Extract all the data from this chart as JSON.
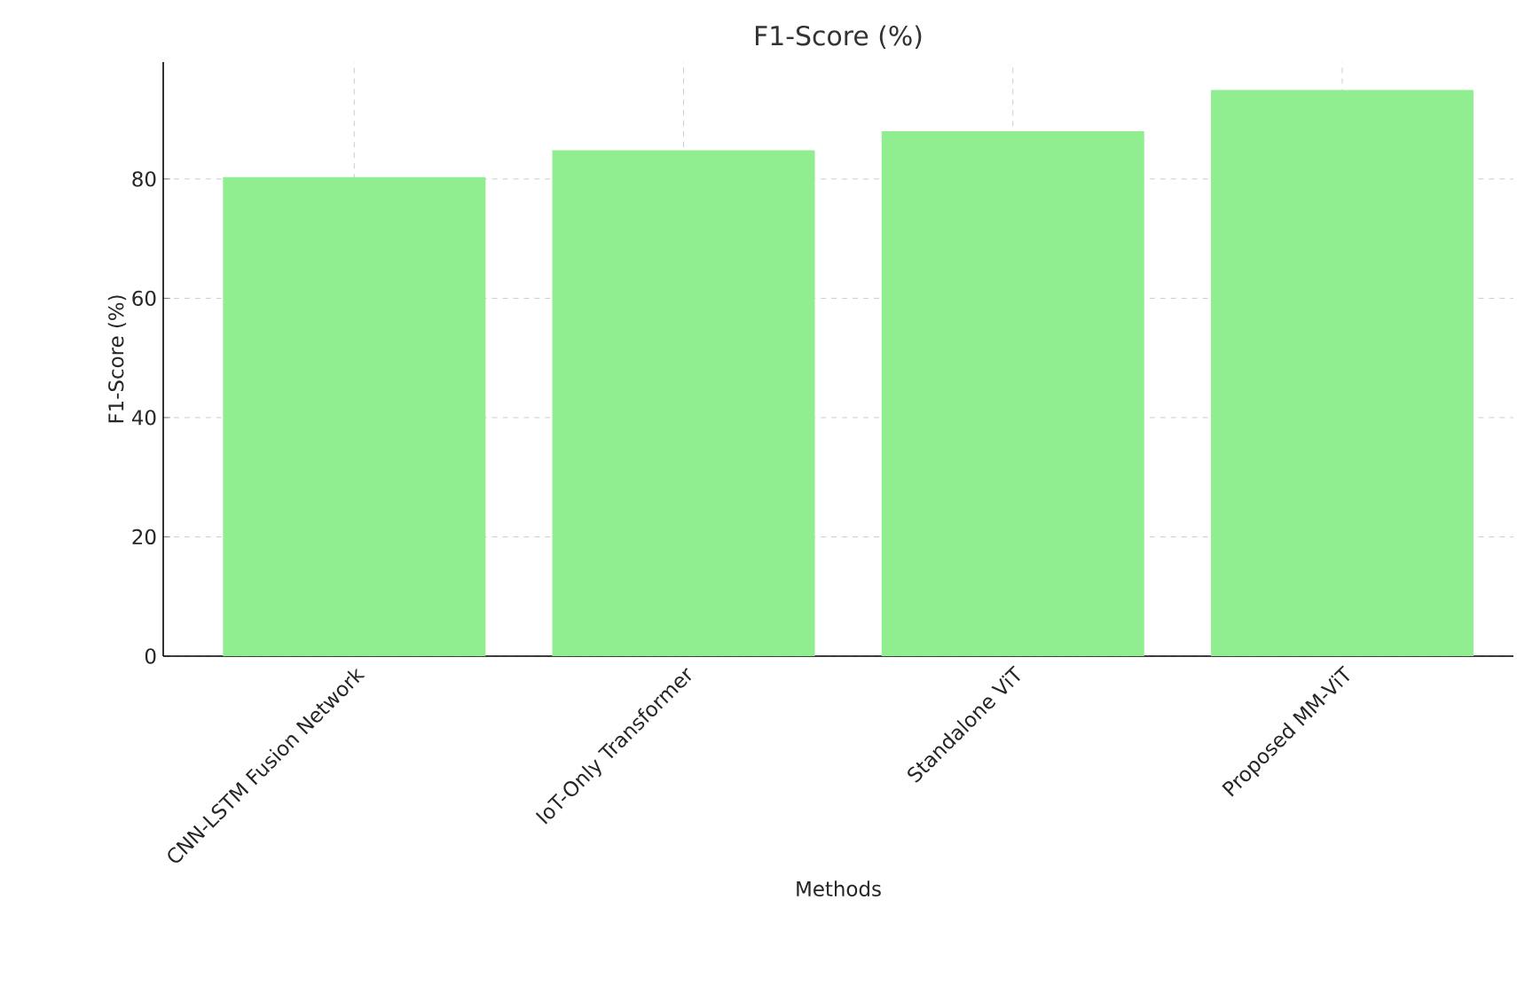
{
  "chart_data": {
    "type": "bar",
    "title": "F1-Score (%)",
    "xlabel": "Methods",
    "ylabel": "F1-Score (%)",
    "categories": [
      "CNN-LSTM Fusion Network",
      "IoT-Only Transformer",
      "Standalone ViT",
      "Proposed MM-ViT"
    ],
    "values": [
      80.3,
      84.8,
      88.0,
      94.9
    ],
    "color": "#90ee90",
    "ylim": [
      0,
      99.6
    ],
    "yticks": [
      0,
      20,
      40,
      60,
      80
    ],
    "grid": true
  }
}
